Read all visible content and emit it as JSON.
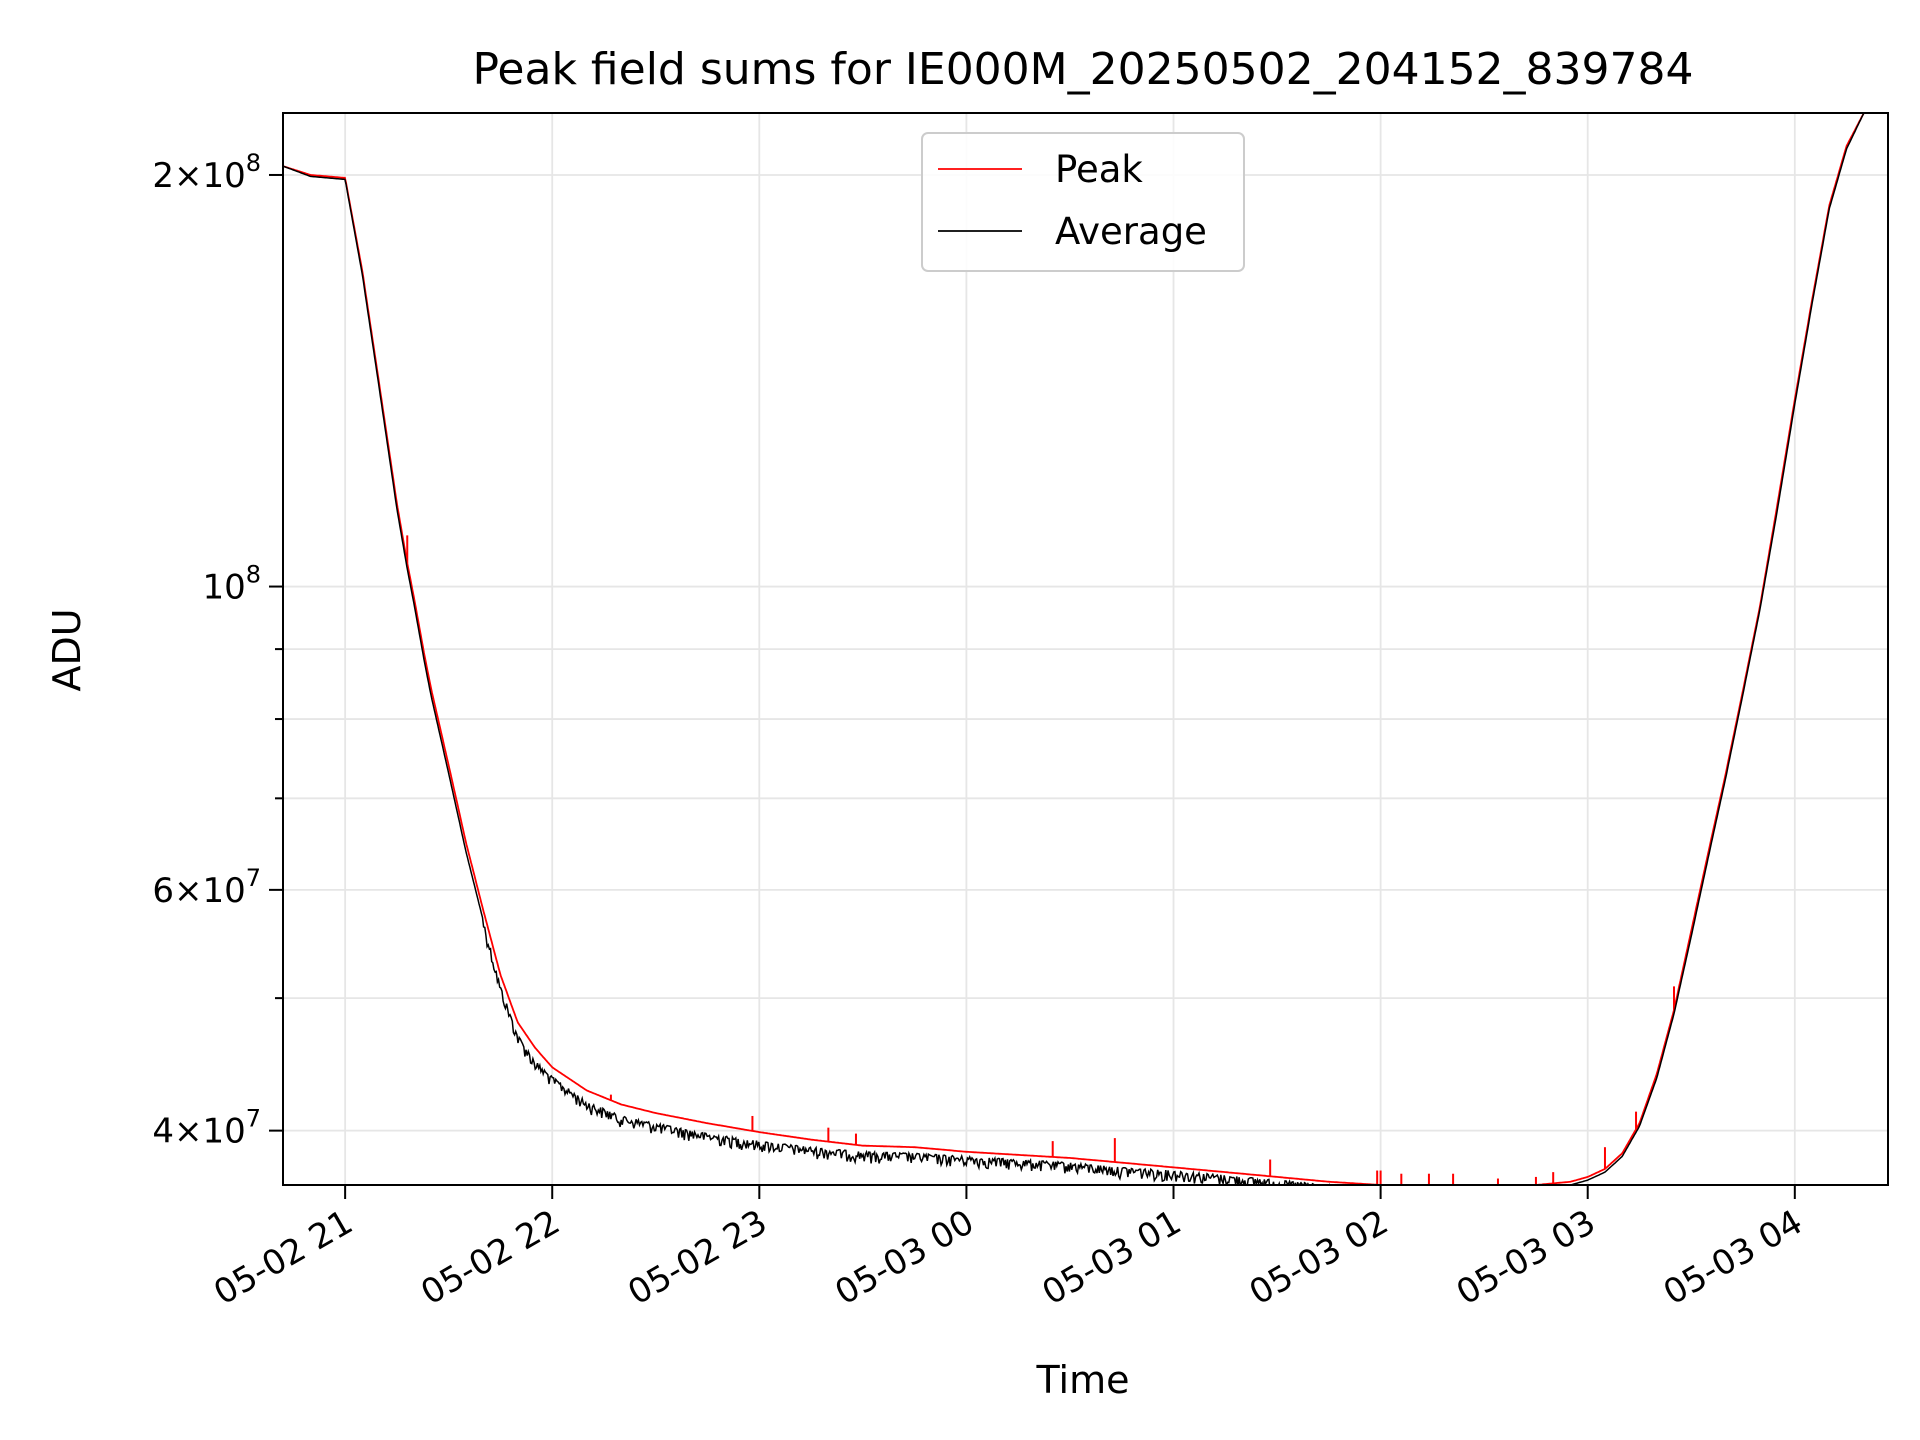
{
  "chart_data": {
    "type": "line",
    "title": "Peak field sums for IE000M_20250502_204152_839784",
    "xlabel": "Time",
    "ylabel": "ADU",
    "y_scale": "log",
    "grid": true,
    "legend_position": "top-center",
    "xlim": [
      "05-02 20:42",
      "05-03 04:27"
    ],
    "ylim": [
      36500000,
      222000000
    ],
    "x_ticks": [
      "05-02 21",
      "05-02 22",
      "05-02 23",
      "05-03 00",
      "05-03 01",
      "05-03 02",
      "05-03 03",
      "05-03 04"
    ],
    "x_tick_times": [
      "05-02 21:00",
      "05-02 22:00",
      "05-02 23:00",
      "05-03 00:00",
      "05-03 01:00",
      "05-03 02:00",
      "05-03 03:00",
      "05-03 04:00"
    ],
    "y_ticks": [
      {
        "value": 200000000,
        "base": "2×10",
        "exp": "8"
      },
      {
        "value": 100000000,
        "base": "10",
        "exp": "8"
      },
      {
        "value": 60000000,
        "base": "6×10",
        "exp": "7"
      },
      {
        "value": 40000000,
        "base": "4×10",
        "exp": "7"
      }
    ],
    "y_minor_ticks": [
      50000000,
      70000000,
      80000000,
      90000000
    ],
    "x": [
      "05-02 20:42",
      "05-02 20:50",
      "05-02 21:00",
      "05-02 21:05",
      "05-02 21:10",
      "05-02 21:15",
      "05-02 21:18",
      "05-02 21:20",
      "05-02 21:23",
      "05-02 21:25",
      "05-02 21:30",
      "05-02 21:35",
      "05-02 21:40",
      "05-02 21:45",
      "05-02 21:50",
      "05-02 21:55",
      "05-02 22:00",
      "05-02 22:10",
      "05-02 22:20",
      "05-02 22:30",
      "05-02 22:45",
      "05-02 23:00",
      "05-02 23:15",
      "05-02 23:30",
      "05-02 23:45",
      "05-03 00:00",
      "05-03 00:15",
      "05-03 00:30",
      "05-03 00:45",
      "05-03 01:00",
      "05-03 01:15",
      "05-03 01:30",
      "05-03 01:45",
      "05-03 02:00",
      "05-03 02:15",
      "05-03 02:30",
      "05-03 02:45",
      "05-03 02:55",
      "05-03 03:00",
      "05-03 03:05",
      "05-03 03:10",
      "05-03 03:15",
      "05-03 03:20",
      "05-03 03:25",
      "05-03 03:30",
      "05-03 03:35",
      "05-03 03:40",
      "05-03 03:45",
      "05-03 03:50",
      "05-03 03:55",
      "05-03 04:00",
      "05-03 04:05",
      "05-03 04:10",
      "05-03 04:15",
      "05-03 04:20",
      "05-03 04:27"
    ],
    "series": [
      {
        "name": "Peak",
        "color": "#ff0000",
        "values": [
          203000000,
          200000000,
          199000000,
          170000000,
          140000000,
          115000000,
          104000000,
          98000000,
          89000000,
          84000000,
          74000000,
          65000000,
          58000000,
          52000000,
          48000000,
          46000000,
          44500000,
          42800000,
          41800000,
          41200000,
          40500000,
          39900000,
          39400000,
          39000000,
          38900000,
          38600000,
          38400000,
          38200000,
          37900000,
          37600000,
          37300000,
          37000000,
          36700000,
          36500000,
          36400000,
          36400000,
          36500000,
          36700000,
          37000000,
          37500000,
          38500000,
          40500000,
          44000000,
          49000000,
          56000000,
          64000000,
          73000000,
          84000000,
          97000000,
          115000000,
          137000000,
          162000000,
          190000000,
          210000000,
          222000000,
          222000000
        ],
        "spikes": [
          {
            "x": "05-02 21:18",
            "y": 109000000
          },
          {
            "x": "05-02 22:17",
            "y": 42500000
          },
          {
            "x": "05-02 22:58",
            "y": 41000000
          },
          {
            "x": "05-02 23:20",
            "y": 40200000
          },
          {
            "x": "05-02 23:28",
            "y": 39800000
          },
          {
            "x": "05-03 00:25",
            "y": 39300000
          },
          {
            "x": "05-03 00:43",
            "y": 39500000
          },
          {
            "x": "05-03 01:28",
            "y": 38100000
          },
          {
            "x": "05-03 01:59",
            "y": 37400000
          },
          {
            "x": "05-03 02:00",
            "y": 37400000
          },
          {
            "x": "05-03 02:06",
            "y": 37200000
          },
          {
            "x": "05-03 02:14",
            "y": 37200000
          },
          {
            "x": "05-03 02:21",
            "y": 37200000
          },
          {
            "x": "05-03 02:34",
            "y": 36900000
          },
          {
            "x": "05-03 02:45",
            "y": 37000000
          },
          {
            "x": "05-03 02:50",
            "y": 37300000
          },
          {
            "x": "05-03 03:05",
            "y": 38900000
          },
          {
            "x": "05-03 03:14",
            "y": 41300000
          },
          {
            "x": "05-03 03:25",
            "y": 51000000
          }
        ]
      },
      {
        "name": "Average",
        "color": "#000000",
        "values": [
          203000000,
          199500000,
          198500000,
          169000000,
          139000000,
          114000000,
          103000000,
          97000000,
          88000000,
          83000000,
          73000000,
          64000000,
          57000000,
          51000000,
          47000000,
          45000000,
          43800000,
          42000000,
          41000000,
          40500000,
          39800000,
          39300000,
          38900000,
          38600000,
          38500000,
          38300000,
          38100000,
          37900000,
          37600000,
          37400000,
          37100000,
          36800000,
          36500000,
          36300000,
          36200000,
          36200000,
          36300000,
          36500000,
          36800000,
          37300000,
          38300000,
          40300000,
          43700000,
          48700000,
          55500000,
          63500000,
          72500000,
          83500000,
          96500000,
          114000000,
          136000000,
          161000000,
          189000000,
          209000000,
          222000000,
          222000000
        ],
        "noise_amplitude": 0.012
      }
    ]
  }
}
